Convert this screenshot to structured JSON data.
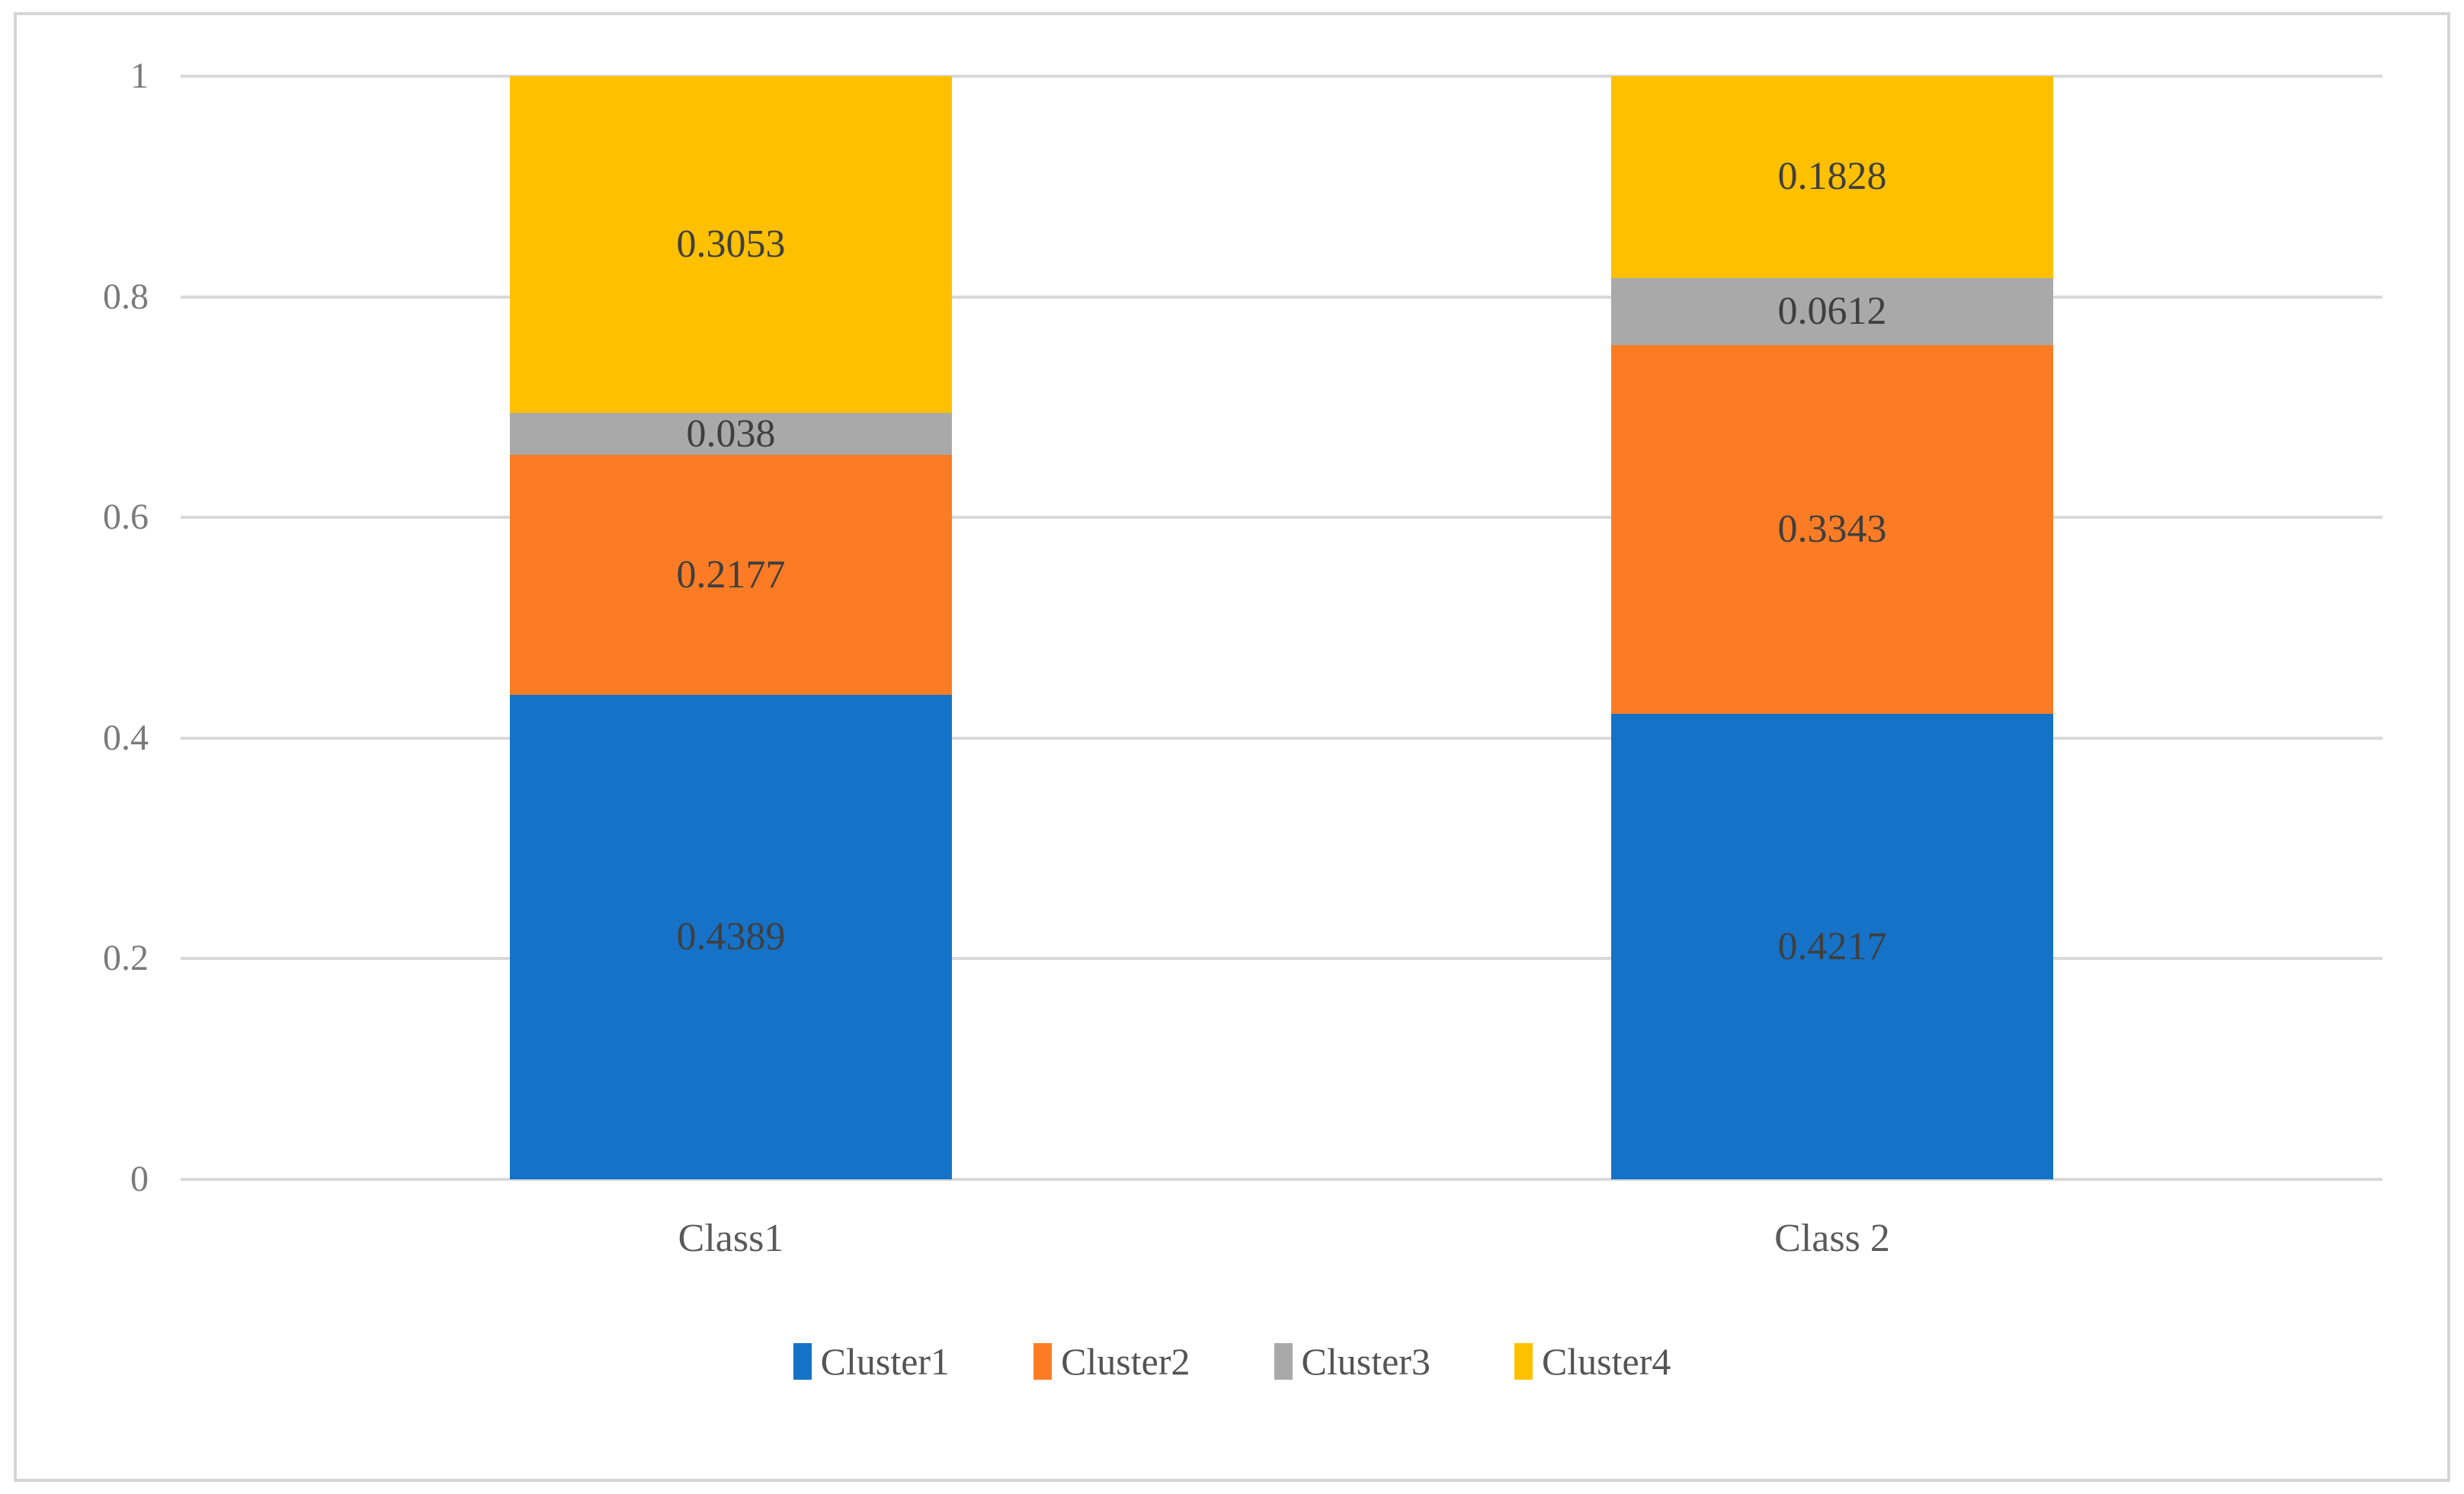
{
  "figure": {
    "background": "#FFFFFF",
    "frame_color": "#D6D6D6"
  },
  "chart_data": {
    "type": "bar",
    "stacked": true,
    "title": "",
    "xlabel": "",
    "ylabel": "",
    "categories": [
      "Class1",
      "Class 2"
    ],
    "series": [
      {
        "name": "Cluster1",
        "color": "#1572C6",
        "values": [
          0.4389,
          0.4217
        ],
        "labels": [
          "0.4389",
          "0.4217"
        ]
      },
      {
        "name": "Cluster2",
        "color": "#FB7C25",
        "values": [
          0.2177,
          0.3343
        ],
        "labels": [
          "0.2177",
          "0.3343"
        ]
      },
      {
        "name": "Cluster3",
        "color": "#A9A9A9",
        "values": [
          0.038,
          0.0612
        ],
        "labels": [
          "0.038",
          "0.0612"
        ]
      },
      {
        "name": "Cluster4",
        "color": "#FFC000",
        "values": [
          0.3053,
          0.1828
        ],
        "labels": [
          "0.3053",
          "0.1828"
        ]
      }
    ],
    "y_axis": {
      "ticks": [
        "1",
        "0.8",
        "0.6",
        "0.4",
        "0.2",
        "0"
      ],
      "min": 0,
      "max": 1
    },
    "grid": true,
    "gridline_color": "#D9D9D9",
    "legend": {
      "position": "bottom",
      "entries": [
        "Cluster1",
        "Cluster2",
        "Cluster3",
        "Cluster4"
      ]
    },
    "text_colors": {
      "data_label": "#3F3F3F",
      "axis_tick": "#7A7A7A",
      "category": "#5A5A5A",
      "legend": "#545454"
    }
  }
}
